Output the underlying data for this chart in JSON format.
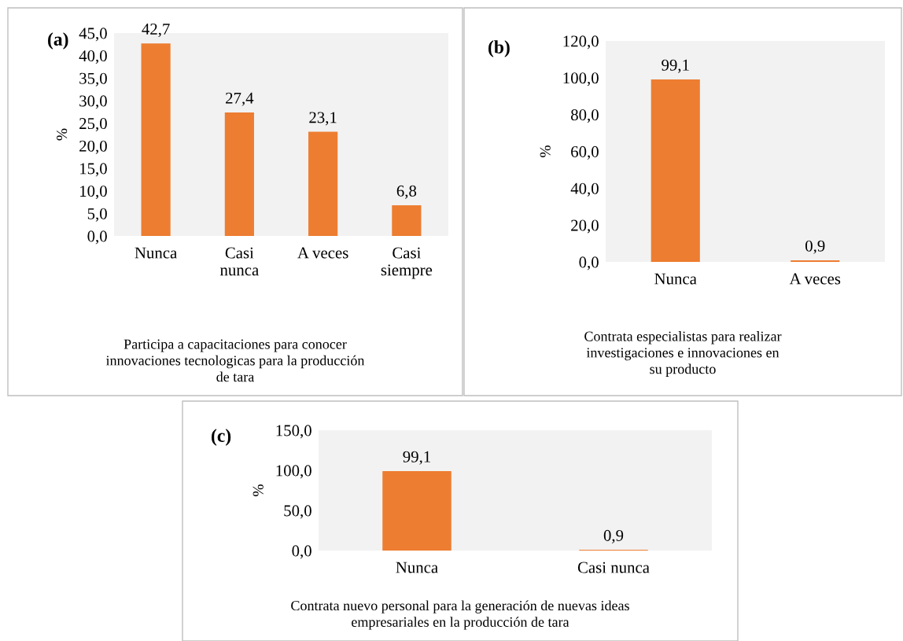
{
  "chart_data": [
    {
      "type": "bar",
      "xlabel": "Participa a capacitaciones para conocer\ninnovaciones tecnologicas para la producción\nde tara",
      "ylabel": "%",
      "annotations": [
        "(a)"
      ],
      "categories": [
        "Nunca",
        "Casi\nnunca",
        "A veces",
        "Casi\nsiempre"
      ],
      "values": [
        42.7,
        27.4,
        23.1,
        6.8
      ],
      "color": "#ed7d31",
      "value_labels": [
        "42,7",
        "27,4",
        "23,1",
        "6,8"
      ],
      "ylim": [
        0,
        45
      ],
      "yticks": [
        {
          "value": 0,
          "label": "0,0"
        },
        {
          "value": 5,
          "label": "5,0"
        },
        {
          "value": 10,
          "label": "10,0"
        },
        {
          "value": 15,
          "label": "15,0"
        },
        {
          "value": 20,
          "label": "20,0"
        },
        {
          "value": 25,
          "label": "25,0"
        },
        {
          "value": 30,
          "label": "30,0"
        },
        {
          "value": 35,
          "label": "35,0"
        },
        {
          "value": 40,
          "label": "40,0"
        },
        {
          "value": 45,
          "label": "45,0"
        }
      ],
      "grid": false,
      "legend": false
    },
    {
      "type": "bar",
      "xlabel": "Contrata especialistas para realizar\ninvestigaciones e innovaciones en\nsu producto",
      "ylabel": "%",
      "annotations": [
        "(b)"
      ],
      "categories": [
        "Nunca",
        "A veces"
      ],
      "values": [
        99.1,
        0.9
      ],
      "color": "#ed7d31",
      "value_labels": [
        "99,1",
        "0,9"
      ],
      "ylim": [
        0,
        120
      ],
      "yticks": [
        {
          "value": 0,
          "label": "0,0"
        },
        {
          "value": 20,
          "label": "20,0"
        },
        {
          "value": 40,
          "label": "40,0"
        },
        {
          "value": 60,
          "label": "60,0"
        },
        {
          "value": 80,
          "label": "80,0"
        },
        {
          "value": 100,
          "label": "100,0"
        },
        {
          "value": 120,
          "label": "120,0"
        }
      ],
      "grid": false,
      "legend": false
    },
    {
      "type": "bar",
      "xlabel": "Contrata nuevo personal para la generación de nuevas ideas\nempresariales en la producción de tara",
      "ylabel": "%",
      "annotations": [
        "(c)"
      ],
      "categories": [
        "Nunca",
        "Casi nunca"
      ],
      "values": [
        99.1,
        0.9
      ],
      "color": "#ed7d31",
      "value_labels": [
        "99,1",
        "0,9"
      ],
      "ylim": [
        0,
        150
      ],
      "yticks": [
        {
          "value": 0,
          "label": "0,0"
        },
        {
          "value": 50,
          "label": "50,0"
        },
        {
          "value": 100,
          "label": "100,0"
        },
        {
          "value": 150,
          "label": "150,0"
        }
      ],
      "grid": false,
      "legend": false
    }
  ]
}
